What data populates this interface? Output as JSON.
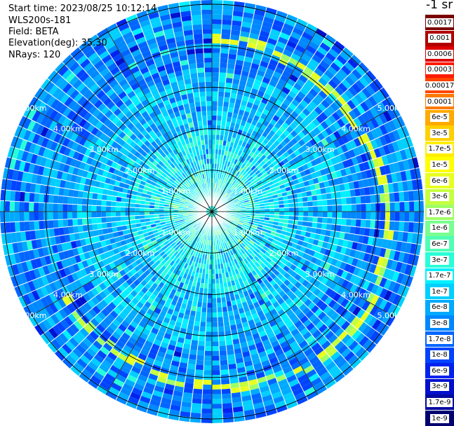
{
  "header": {
    "start_time": "Start time: 2023/08/25 10:12:14",
    "device": "WLS200s-181",
    "field": "Field: BETA",
    "elevation": "Elevation(deg): 35.30",
    "nrays": "NRays: 120"
  },
  "plot": {
    "type": "ppi-polar-scan",
    "n_rays": 120,
    "ring_labels_km": [
      "1.00km",
      "2.00km",
      "3.00km",
      "4.00km",
      "5.00km"
    ],
    "range_max_km": 5.1
  },
  "legend": {
    "unit": "-1 sr",
    "entries": [
      {
        "label": "0.0017",
        "color": "#7a0000"
      },
      {
        "label": "0.001",
        "color": "#b00000"
      },
      {
        "label": "0.0006",
        "color": "#dd0000"
      },
      {
        "label": "0.0003",
        "color": "#ff1a00"
      },
      {
        "label": "0.00017",
        "color": "#ff4400"
      },
      {
        "label": "0.0001",
        "color": "#ff7a00"
      },
      {
        "label": "6e-5",
        "color": "#ffaa00"
      },
      {
        "label": "3e-5",
        "color": "#ffd000"
      },
      {
        "label": "1.7e-5",
        "color": "#ffee00"
      },
      {
        "label": "1e-5",
        "color": "#ffff00"
      },
      {
        "label": "6e-6",
        "color": "#e8ff20"
      },
      {
        "label": "3e-6",
        "color": "#c6ff40"
      },
      {
        "label": "1.7e-6",
        "color": "#a0ff66"
      },
      {
        "label": "1e-6",
        "color": "#78ff90"
      },
      {
        "label": "6e-7",
        "color": "#50ffb4"
      },
      {
        "label": "3e-7",
        "color": "#28ffd8"
      },
      {
        "label": "1.7e-7",
        "color": "#00f0ff"
      },
      {
        "label": "1e-7",
        "color": "#00cfff"
      },
      {
        "label": "6e-8",
        "color": "#00aaff"
      },
      {
        "label": "3e-8",
        "color": "#0088ff"
      },
      {
        "label": "1.7e-8",
        "color": "#0066ff"
      },
      {
        "label": "1e-8",
        "color": "#0044ff"
      },
      {
        "label": "6e-9",
        "color": "#0022ee"
      },
      {
        "label": "3e-9",
        "color": "#0010cc"
      },
      {
        "label": "1.7e-9",
        "color": "#000aa0"
      },
      {
        "label": "1e-9",
        "color": "#000070"
      }
    ]
  }
}
